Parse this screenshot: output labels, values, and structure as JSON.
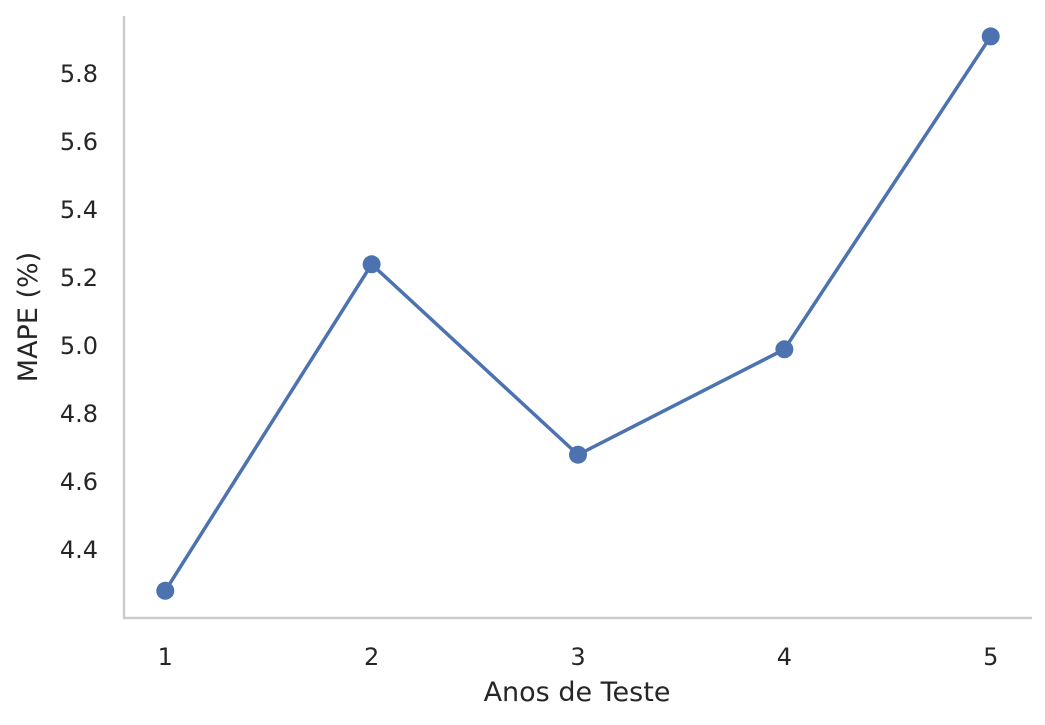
{
  "chart_data": {
    "type": "line",
    "title": "",
    "xlabel": "Anos de Teste",
    "ylabel": "MAPE (%)",
    "categories": [
      "1",
      "2",
      "3",
      "4",
      "5"
    ],
    "x": [
      1,
      2,
      3,
      4,
      5
    ],
    "series": [
      {
        "values": [
          4.28,
          5.24,
          4.68,
          4.99,
          5.91
        ],
        "color": "#4c72b0",
        "marker": "circle"
      }
    ],
    "xlim": [
      0.8,
      5.2
    ],
    "ylim": [
      4.2,
      5.97
    ],
    "yticks": [
      4.4,
      4.6,
      4.8,
      5.0,
      5.2,
      5.4,
      5.6,
      5.8
    ],
    "ytick_labels": [
      "4.4",
      "4.6",
      "4.8",
      "5.0",
      "5.2",
      "5.4",
      "5.6",
      "5.8"
    ],
    "grid": false,
    "legend": "none",
    "axis_color": "#cccccc"
  }
}
